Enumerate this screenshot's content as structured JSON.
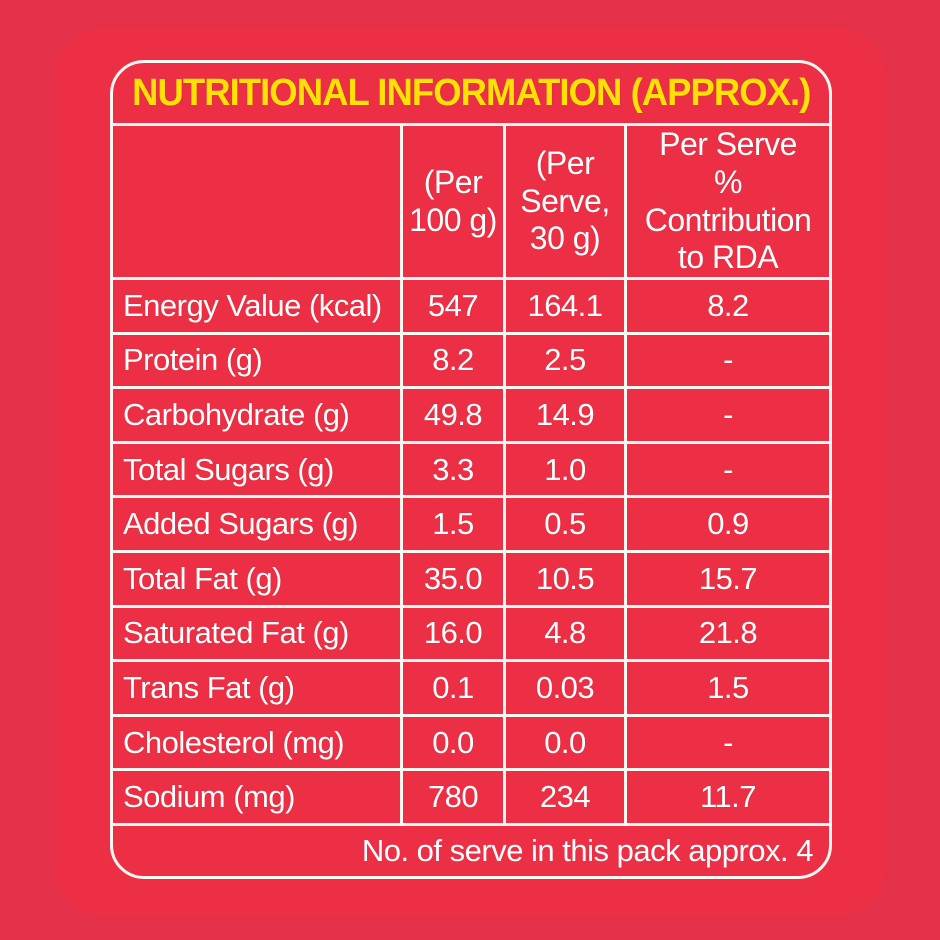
{
  "title": "NUTRITIONAL INFORMATION (APPROX.)",
  "headers": {
    "nutrient": "",
    "per_100g": "(Per\n100 g)",
    "per_serve": "(Per\nServe,\n30 g)",
    "rda": "Per Serve\n% Contribution\nto RDA"
  },
  "table": {
    "rows": [
      {
        "label": "Energy Value (kcal)",
        "per_100g": "547",
        "per_serve": "164.1",
        "rda": "8.2"
      },
      {
        "label": "Protein (g)",
        "per_100g": "8.2",
        "per_serve": "2.5",
        "rda": "-"
      },
      {
        "label": "Carbohydrate (g)",
        "per_100g": "49.8",
        "per_serve": "14.9",
        "rda": "-"
      },
      {
        "label": "Total Sugars (g)",
        "per_100g": "3.3",
        "per_serve": "1.0",
        "rda": "-"
      },
      {
        "label": "Added Sugars (g)",
        "per_100g": "1.5",
        "per_serve": "0.5",
        "rda": "0.9"
      },
      {
        "label": "Total Fat (g)",
        "per_100g": "35.0",
        "per_serve": "10.5",
        "rda": "15.7"
      },
      {
        "label": "Saturated Fat (g)",
        "per_100g": "16.0",
        "per_serve": "4.8",
        "rda": "21.8"
      },
      {
        "label": "Trans Fat (g)",
        "per_100g": "0.1",
        "per_serve": "0.03",
        "rda": "1.5"
      },
      {
        "label": "Cholesterol (mg)",
        "per_100g": "0.0",
        "per_serve": "0.0",
        "rda": "-"
      },
      {
        "label": "Sodium (mg)",
        "per_100g": "780",
        "per_serve": "234",
        "rda": "11.7"
      }
    ]
  },
  "footer_note": "No. of serve in this pack approx. 4",
  "colors": {
    "background": "#e5304a",
    "card": "#ec2f44",
    "border": "#fbf8f2",
    "title_text": "#ffe105",
    "body_text": "#ffffff"
  }
}
